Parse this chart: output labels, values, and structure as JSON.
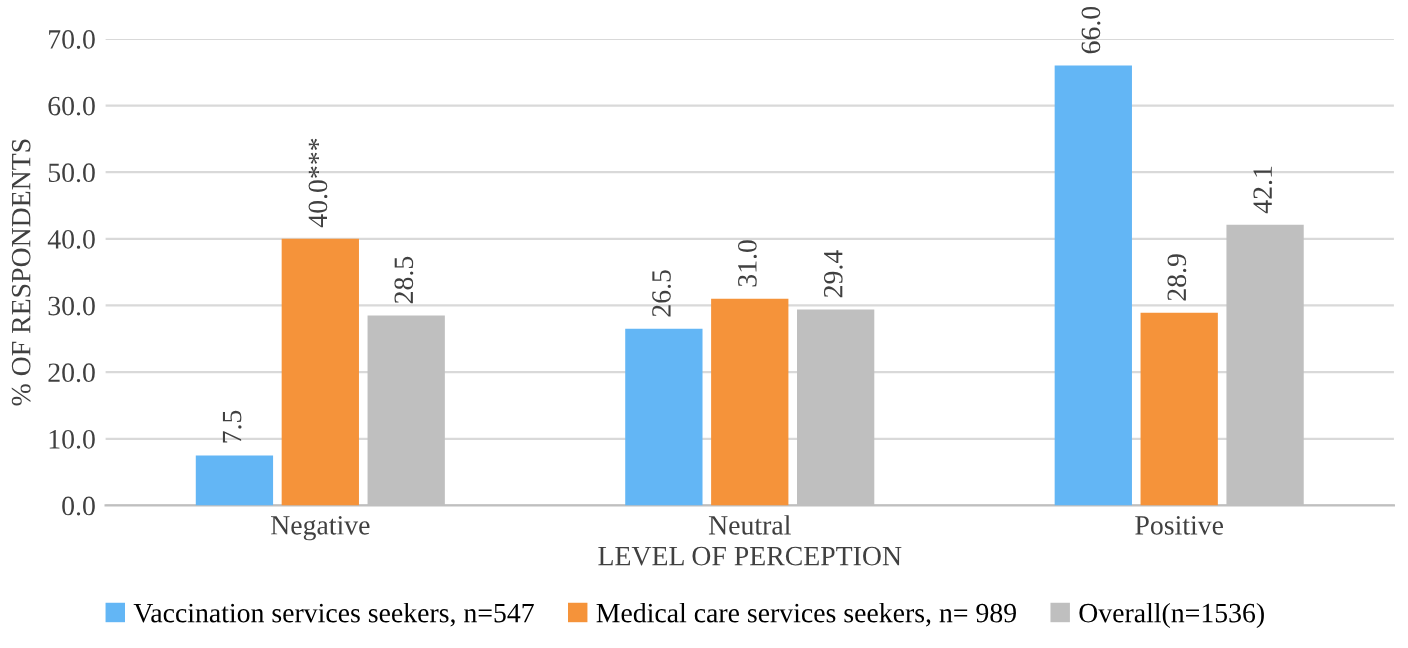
{
  "chart_data": {
    "type": "bar",
    "xlabel": "LEVEL OF PERCEPTION",
    "ylabel": "% OF RESPONDENTS",
    "categories": [
      "Negative",
      "Neutral",
      "Positive"
    ],
    "series": [
      {
        "name": "Vaccination services seekers, n=547",
        "color": "#63b6f5",
        "values": [
          7.5,
          26.5,
          66.0
        ],
        "value_labels": [
          "7.5",
          "26.5",
          "66.0"
        ]
      },
      {
        "name": "Medical care services seekers, n= 989",
        "color": "#f5933a",
        "values": [
          40.0,
          31.0,
          28.9
        ],
        "value_labels": [
          "40.0***",
          "31.0",
          "28.9"
        ]
      },
      {
        "name": "Overall(n=1536)",
        "color": "#bfbfbf",
        "values": [
          28.5,
          29.4,
          42.1
        ],
        "value_labels": [
          "28.5",
          "29.4",
          "42.1"
        ]
      }
    ],
    "ylim": [
      0,
      70
    ],
    "yticks": [
      {
        "value": 0,
        "label": "0.0"
      },
      {
        "value": 10,
        "label": "10.0"
      },
      {
        "value": 20,
        "label": "20.0"
      },
      {
        "value": 30,
        "label": "30.0"
      },
      {
        "value": 40,
        "label": "40.0"
      },
      {
        "value": 50,
        "label": "50.0"
      },
      {
        "value": 60,
        "label": "60.0"
      },
      {
        "value": 70,
        "label": "70.0"
      }
    ],
    "grid": "y",
    "legend": "bottom"
  }
}
